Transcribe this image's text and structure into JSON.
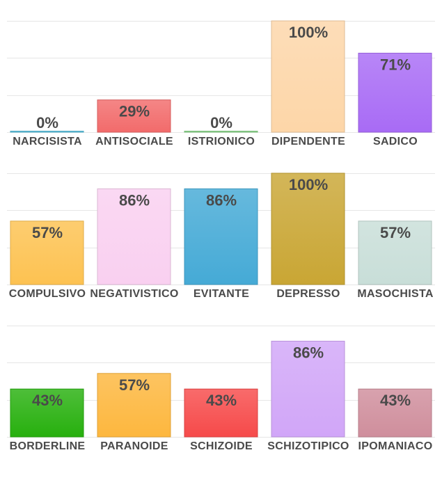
{
  "chart_data": [
    {
      "type": "bar",
      "categories": [
        "NARCISISTA",
        "ANTISOCIALE",
        "ISTRIONICO",
        "DIPENDENTE",
        "SADICO"
      ],
      "values": [
        0,
        29,
        0,
        100,
        71
      ],
      "value_labels": [
        "0%",
        "29%",
        "0%",
        "100%",
        "71%"
      ],
      "colors": [
        "#5bc0de",
        "#f26b6b",
        "#8bd68b",
        "#fdd6a8",
        "#a86bf5"
      ],
      "ylim": [
        0,
        100
      ],
      "grid": true
    },
    {
      "type": "bar",
      "categories": [
        "COMPULSIVO",
        "NEGATIVISTICO",
        "EVITANTE",
        "DEPRESSO",
        "MASOCHISTA"
      ],
      "values": [
        57,
        86,
        86,
        100,
        57
      ],
      "value_labels": [
        "57%",
        "86%",
        "86%",
        "100%",
        "57%"
      ],
      "colors": [
        "#fdc251",
        "#f9d0f0",
        "#45aad6",
        "#c9a634",
        "#c8ded8"
      ],
      "ylim": [
        0,
        100
      ],
      "grid": true
    },
    {
      "type": "bar",
      "categories": [
        "BORDERLINE",
        "PARANOIDE",
        "SCHIZOIDE",
        "SCHIZOTIPICO",
        "IPOMANIACO"
      ],
      "values": [
        43,
        57,
        43,
        86,
        43
      ],
      "value_labels": [
        "43%",
        "57%",
        "43%",
        "86%",
        "43%"
      ],
      "colors": [
        "#27b00e",
        "#fdb73e",
        "#f64a4a",
        "#d1a6f8",
        "#cf8e9c"
      ],
      "ylim": [
        0,
        100
      ],
      "grid": true
    }
  ]
}
